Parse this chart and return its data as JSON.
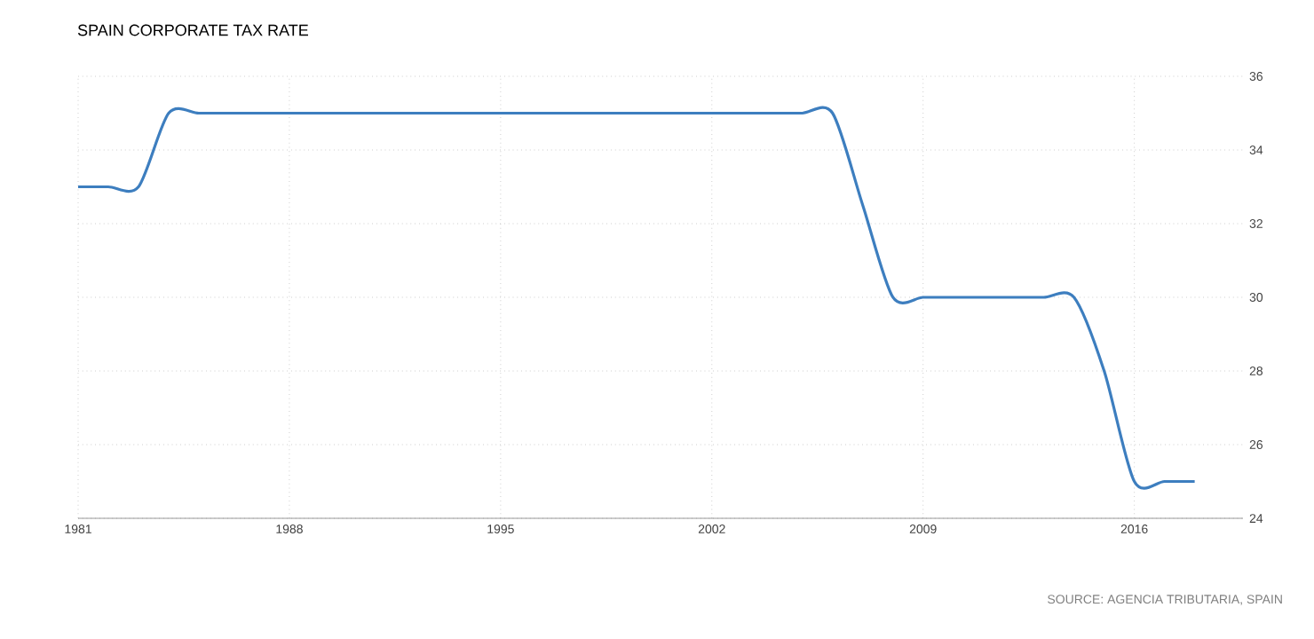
{
  "chart_data": {
    "type": "line",
    "title": "SPAIN CORPORATE TAX RATE",
    "x": [
      1981,
      1982,
      1983,
      1984,
      1985,
      1986,
      1987,
      1988,
      1989,
      1990,
      1991,
      1992,
      1993,
      1994,
      1995,
      1996,
      1997,
      1998,
      1999,
      2000,
      2001,
      2002,
      2003,
      2004,
      2005,
      2006,
      2007,
      2008,
      2009,
      2010,
      2011,
      2012,
      2013,
      2014,
      2015,
      2016,
      2017,
      2018
    ],
    "values": [
      33,
      33,
      33,
      35,
      35,
      35,
      35,
      35,
      35,
      35,
      35,
      35,
      35,
      35,
      35,
      35,
      35,
      35,
      35,
      35,
      35,
      35,
      35,
      35,
      35,
      35,
      32.5,
      30,
      30,
      30,
      30,
      30,
      30,
      30,
      28,
      25,
      25,
      25
    ],
    "color": "#3d7ebf",
    "xlim": [
      1981,
      2019.6
    ],
    "ylim": [
      24,
      36
    ],
    "xticks": [
      1981,
      1988,
      1995,
      2002,
      2009,
      2016
    ],
    "yticks": [
      24,
      26,
      28,
      30,
      32,
      34,
      36
    ],
    "grid": true,
    "annotations": [
      "SOURCE: AGENCIA TRIBUTARIA, SPAIN"
    ]
  }
}
